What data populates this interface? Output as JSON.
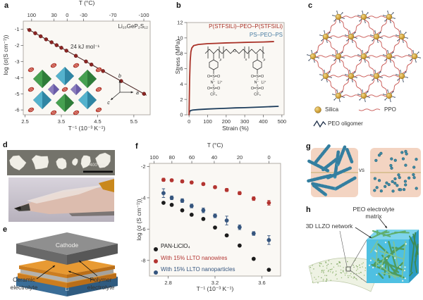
{
  "colors": {
    "plot_bg": "#faf8f4",
    "axis": "#a9a59e",
    "maroon": "#8b2523",
    "red": "#b33430",
    "navy": "#1d3d5c",
    "steel_blue": "#4a7da3",
    "gold": "#d2a43c",
    "peach": "#f3d4c2",
    "teal": "#3e92b4",
    "cube_blue": "#4fc0e2",
    "llzo_green": "#4e9c5e"
  },
  "panels": {
    "a": {
      "label": "a"
    },
    "b": {
      "label": "b"
    },
    "c": {
      "label": "c",
      "legend": {
        "silica": "Silica",
        "ppo": "PPO",
        "peo": "PEO oligomer"
      }
    },
    "d": {
      "label": "d",
      "scale_bar_label": "400 µm"
    },
    "e": {
      "label": "e",
      "cathode": "Cathode",
      "li": "Li",
      "ceramic_line1": "Ceramic",
      "ceramic_line2": "electrolyte",
      "polymer_line1": "Polymer",
      "polymer_line2": "electrolyte"
    },
    "f": {
      "label": "f"
    },
    "g": {
      "label": "g",
      "vs_label": "vs"
    },
    "h": {
      "label": "h",
      "matrix_line1": "PEO electrolyte",
      "matrix_line2": "matrix",
      "network_label": "3D LLZO network"
    }
  },
  "chart_data": [
    {
      "id": "a",
      "type": "scatter",
      "top_axis_title": "T (°C)",
      "top_ticks_celsius": [
        100,
        30,
        0,
        -30,
        -70,
        -100
      ],
      "xlabel": "T⁻¹ (10⁻³ K⁻¹)",
      "ylabel": "log (σ(S cm⁻¹))",
      "xlim": [
        2.45,
        5.95
      ],
      "ylim": [
        -6.3,
        -0.5
      ],
      "x_ticks": [
        2.5,
        3.5,
        4.5,
        5.5
      ],
      "y_ticks": [
        -1,
        -2,
        -3,
        -4,
        -5,
        -6
      ],
      "corner_label": "Li₁₀GeP₂S₁₂",
      "annotation": "24 kJ mol⁻¹",
      "inset_axes": {
        "up": "b",
        "right": "a",
        "down_left": "c"
      },
      "series": [
        {
          "name": "Li₁₀GeP₂S₁₂",
          "color": "#8b2523",
          "line_color": "#46201e",
          "x": [
            2.62,
            2.78,
            2.93,
            3.08,
            3.23,
            3.37,
            3.5,
            3.64,
            3.9,
            4.18,
            4.33,
            4.65,
            5.15,
            5.78
          ],
          "y": [
            -1.05,
            -1.25,
            -1.44,
            -1.63,
            -1.81,
            -1.99,
            -2.15,
            -2.33,
            -2.65,
            -3.0,
            -3.19,
            -3.59,
            -4.21,
            -5.0
          ],
          "fit_line": {
            "x": [
              2.55,
              5.85
            ],
            "y": [
              -0.96,
              -5.09
            ]
          }
        }
      ]
    },
    {
      "id": "b",
      "type": "line",
      "xlabel": "Strain (%)",
      "ylabel": "Stress (MPa)",
      "xlim": [
        -12,
        512
      ],
      "ylim": [
        0,
        12
      ],
      "x_ticks": [
        0,
        100,
        200,
        300,
        400,
        500
      ],
      "y_ticks": [
        0,
        2,
        4,
        6,
        8,
        10,
        12
      ],
      "series": [
        {
          "name": "P(STFSILi)–PEO–P(STFSILi)",
          "color": "#a93127",
          "points": [
            [
              0,
              0
            ],
            [
              3,
              4.5
            ],
            [
              6,
              7.0
            ],
            [
              10,
              8.2
            ],
            [
              15,
              8.7
            ],
            [
              25,
              9.0
            ],
            [
              50,
              9.15
            ],
            [
              100,
              9.25
            ],
            [
              150,
              9.3
            ],
            [
              200,
              9.35
            ],
            [
              250,
              9.38
            ],
            [
              300,
              9.42
            ],
            [
              350,
              9.45
            ],
            [
              400,
              9.47
            ],
            [
              455,
              9.52
            ]
          ]
        },
        {
          "name": "PS–PEO–PS",
          "color": "#1d3d5c",
          "label_color": "#4a7da3",
          "points": [
            [
              0,
              0
            ],
            [
              3,
              0.4
            ],
            [
              8,
              0.55
            ],
            [
              20,
              0.62
            ],
            [
              50,
              0.68
            ],
            [
              100,
              0.75
            ],
            [
              150,
              0.8
            ],
            [
              200,
              0.85
            ],
            [
              250,
              0.9
            ],
            [
              300,
              0.93
            ],
            [
              350,
              0.97
            ],
            [
              400,
              1.02
            ],
            [
              440,
              1.06
            ],
            [
              480,
              1.1
            ]
          ]
        }
      ],
      "structure_text": {
        "sulfonyl": "O=S=O",
        "imide": "N⁻",
        "li": "Li⁺",
        "cf3": "CF₃",
        "sub_p": "p",
        "sub_n": "n",
        "backbone_o": "O"
      }
    },
    {
      "id": "f",
      "type": "scatter",
      "top_axis_title": "T (°C)",
      "top_ticks_celsius": [
        100,
        80,
        60,
        40,
        20,
        0
      ],
      "xlabel": "T⁻¹ (10⁻³ K⁻¹)",
      "ylabel": "log (σ (S cm⁻¹))",
      "xlim": [
        2.64,
        3.76
      ],
      "ylim": [
        -9.0,
        -1.8
      ],
      "x_ticks": [
        2.8,
        3.2,
        3.6
      ],
      "y_ticks": [
        -2,
        -4,
        -6,
        -8
      ],
      "x": [
        2.76,
        2.83,
        2.92,
        3.0,
        3.1,
        3.2,
        3.3,
        3.41,
        3.53,
        3.66
      ],
      "series": [
        {
          "name": "PAN-LiClO₄",
          "color": "#1c1c1c",
          "y": [
            -4.32,
            -4.45,
            -4.8,
            -5.08,
            -5.35,
            -5.9,
            -6.4,
            -7.05,
            -7.9,
            -8.6
          ],
          "err": [
            0,
            0,
            0,
            0,
            0,
            0,
            0,
            0,
            0,
            0
          ]
        },
        {
          "name": "With 15% LLTO nanowires",
          "color": "#b33430",
          "y": [
            -2.85,
            -2.88,
            -2.95,
            -3.02,
            -3.12,
            -3.32,
            -3.5,
            -3.7,
            -4.05,
            -4.32
          ],
          "err": [
            0.1,
            0.08,
            0.08,
            0.08,
            0.08,
            0.08,
            0.1,
            0.1,
            0.12,
            0.15
          ]
        },
        {
          "name": "With 15% LLTO nanoparticles",
          "color": "#35557e",
          "y": [
            -3.7,
            -4.0,
            -4.18,
            -4.52,
            -4.8,
            -5.15,
            -5.45,
            -5.88,
            -6.28,
            -6.7
          ],
          "err": [
            0.28,
            0.12,
            0.12,
            0.12,
            0.15,
            0.12,
            0.28,
            0.15,
            0.12,
            0.28
          ]
        }
      ]
    }
  ]
}
